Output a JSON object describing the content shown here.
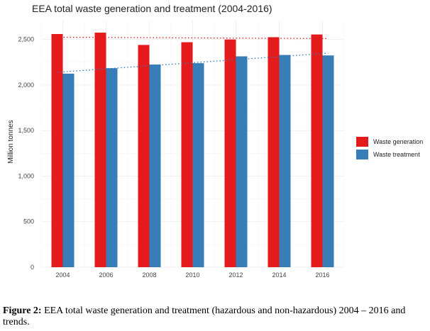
{
  "caption": {
    "label": "Figure 2:",
    "text": " EEA total waste generation and treatment (hazardous and non-hazardous) 2004 – 2016 and trends."
  },
  "chart_data": {
    "type": "bar",
    "title": "EEA total waste generation and treatment (2004-2016)",
    "xlabel": "",
    "ylabel": "Million tonnes",
    "categories": [
      "2004",
      "2006",
      "2008",
      "2010",
      "2012",
      "2014",
      "2016"
    ],
    "series": [
      {
        "name": "Waste generation",
        "color": "#e41a1c",
        "values": [
          2560,
          2575,
          2440,
          2470,
          2500,
          2525,
          2555
        ]
      },
      {
        "name": "Waste treatment",
        "color": "#377eb8",
        "values": [
          2125,
          2185,
          2225,
          2240,
          2315,
          2330,
          2325
        ]
      }
    ],
    "trendlines": [
      {
        "series": "Waste generation",
        "start": 2525,
        "end": 2510,
        "style": "dotted"
      },
      {
        "series": "Waste treatment",
        "start": 2140,
        "end": 2350,
        "style": "dotted"
      }
    ],
    "ylim": [
      0,
      2700
    ],
    "yticks": [
      0,
      500,
      1000,
      1500,
      2000,
      2500
    ],
    "ytick_labels": [
      "0",
      "500",
      "1,000",
      "1,500",
      "2,000",
      "2,500"
    ],
    "grid": true,
    "legend_position": "right"
  }
}
